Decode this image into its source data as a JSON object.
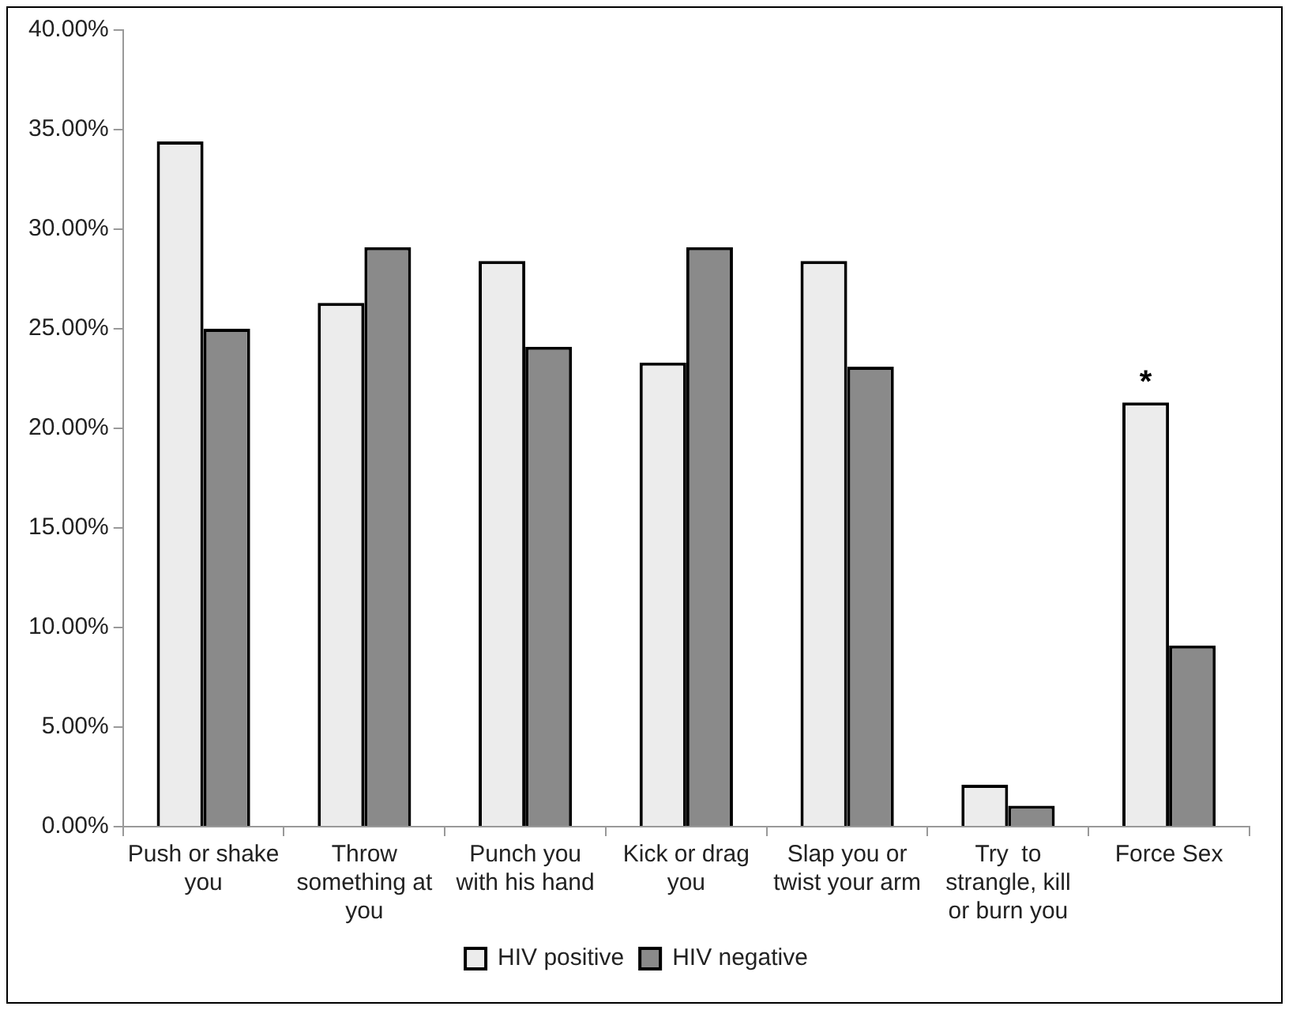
{
  "chart_data": {
    "type": "bar",
    "categories": [
      "Push or shake you",
      "Throw something at you",
      "Punch you with his hand",
      "Kick or drag you",
      "Slap you or twist your arm",
      "Try  to strangle, kill or burn you",
      "Force Sex"
    ],
    "series": [
      {
        "name": "HIV positive",
        "color": "#ececec",
        "values": [
          34.4,
          26.3,
          28.4,
          23.3,
          28.4,
          2.1,
          21.3
        ]
      },
      {
        "name": "HIV negative",
        "color": "#8a8a8a",
        "values": [
          25.0,
          29.1,
          24.1,
          29.1,
          23.1,
          1.05,
          9.1
        ]
      }
    ],
    "ylim": [
      0,
      40
    ],
    "yticks": [
      {
        "value": 0,
        "label": "0.00%"
      },
      {
        "value": 5,
        "label": "5.00%"
      },
      {
        "value": 10,
        "label": "10.00%"
      },
      {
        "value": 15,
        "label": "15.00%"
      },
      {
        "value": 20,
        "label": "20.00%"
      },
      {
        "value": 25,
        "label": "25.00%"
      },
      {
        "value": 30,
        "label": "30.00%"
      },
      {
        "value": 35,
        "label": "35.00%"
      },
      {
        "value": 40,
        "label": "40.00%"
      }
    ],
    "grid": false,
    "legend": "bottom",
    "annotations": [
      {
        "text": "*",
        "x": "Force Sex",
        "y": 21.3
      }
    ]
  }
}
